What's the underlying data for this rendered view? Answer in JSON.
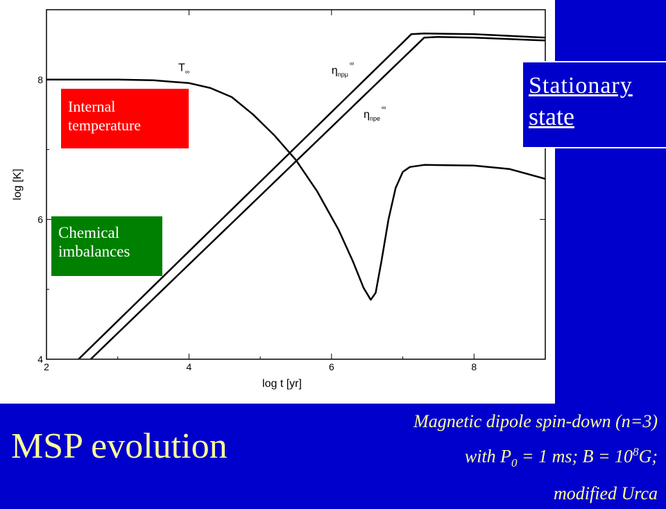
{
  "colors": {
    "background": "#0000cc",
    "title_text": "#ffff99",
    "internal_box": "#ff0000",
    "chemical_box": "#008000"
  },
  "title": "MSP evolution",
  "caption": {
    "line1": "Magnetic dipole spin-down (n=3)",
    "line2_prefix": "with P",
    "line2_sub": "0",
    "line2_mid": " = 1 ms; B = 10",
    "line2_sup": "8",
    "line2_suffix": "G;",
    "line3": "modified Urca"
  },
  "annotations": {
    "internal_line1": "Internal",
    "internal_line2": "temperature",
    "chemical_line1": "Chemical",
    "chemical_line2": "imbalances",
    "stationary_line1": "Stationary",
    "stationary_line2": "state"
  },
  "chart_data": {
    "type": "line",
    "xlabel": "log t [yr]",
    "ylabel": "log [K]",
    "xlim": [
      2,
      9
    ],
    "ylim": [
      4,
      9
    ],
    "xticks": [
      "2",
      "4",
      "6",
      "8"
    ],
    "yticks": [
      "4",
      "6",
      "8"
    ],
    "series": [
      {
        "name": "T∞",
        "label_main": "T",
        "label_sub": "∞",
        "x": [
          2.0,
          3.0,
          3.5,
          4.0,
          4.3,
          4.6,
          4.9,
          5.2,
          5.5,
          5.8,
          6.1,
          6.3,
          6.45,
          6.55,
          6.62,
          6.7,
          6.8,
          6.9,
          7.0,
          7.1,
          7.3,
          8.0,
          8.5,
          9.0
        ],
        "y": [
          8.0,
          8.0,
          7.99,
          7.95,
          7.88,
          7.75,
          7.5,
          7.2,
          6.85,
          6.4,
          5.85,
          5.4,
          5.02,
          4.85,
          4.95,
          5.4,
          6.0,
          6.45,
          6.68,
          6.75,
          6.78,
          6.77,
          6.72,
          6.58
        ]
      },
      {
        "name": "η_npμ∞",
        "label_main": "η",
        "label_sub": "npμ",
        "label_sup": "∞",
        "x": [
          2.45,
          7.12,
          7.3,
          8.0,
          9.0
        ],
        "y": [
          4.0,
          8.65,
          8.66,
          8.65,
          8.6
        ]
      },
      {
        "name": "η_npe∞",
        "label_main": "η",
        "label_sub": "npe",
        "label_sup": "∞",
        "x": [
          2.62,
          7.3,
          7.5,
          8.0,
          9.0
        ],
        "y": [
          4.0,
          8.6,
          8.61,
          8.6,
          8.56
        ]
      }
    ]
  }
}
